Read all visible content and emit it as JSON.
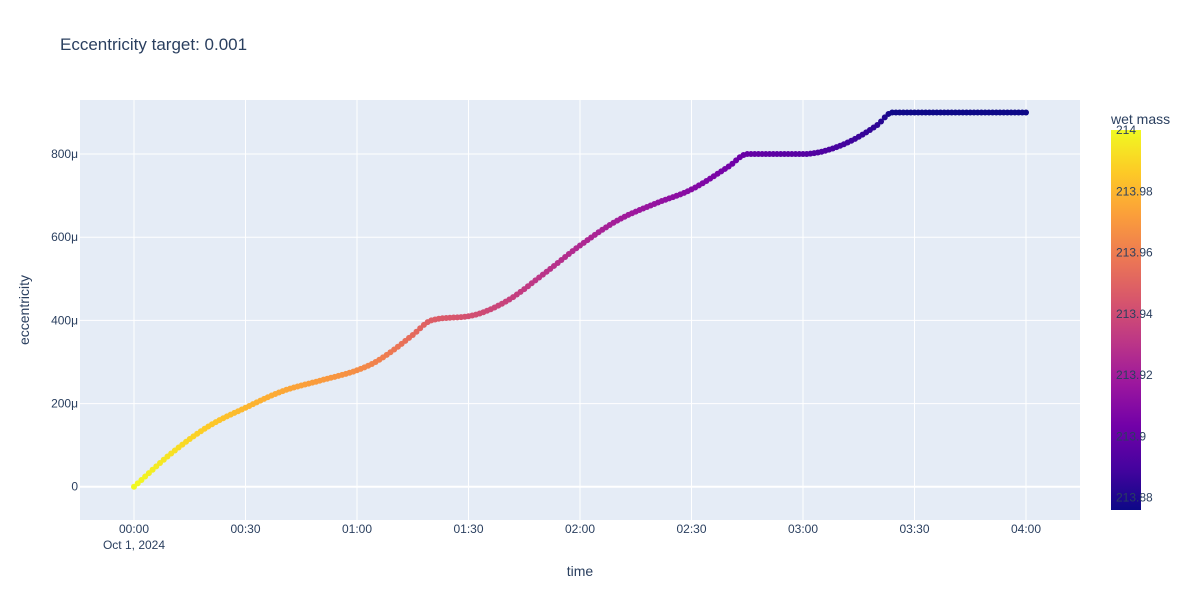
{
  "chart_data": {
    "type": "scatter",
    "title": "Eccentricity target: 0.001",
    "xlabel": "time",
    "ylabel": "eccentricity",
    "x_start": "2024-10-01T00:00",
    "x_end": "2024-10-01T04:00",
    "x_date_label": "Oct 1, 2024",
    "x_tick_labels": [
      "00:00",
      "00:30",
      "01:00",
      "01:30",
      "02:00",
      "02:30",
      "03:00",
      "03:30",
      "04:00"
    ],
    "y_tick_values": [
      0,
      0.0002,
      0.0004,
      0.0006,
      0.0008
    ],
    "y_tick_labels": [
      "0",
      "200μ",
      "400μ",
      "600μ",
      "800μ"
    ],
    "ylim": [
      -8e-05,
      0.00093
    ],
    "grid": true,
    "colorbar": {
      "title": "wet mass",
      "range": [
        213.876,
        214.0
      ],
      "tick_values": [
        214,
        213.98,
        213.96,
        213.94,
        213.92,
        213.9,
        213.88
      ],
      "tick_labels": [
        "214",
        "213.98",
        "213.96",
        "213.94",
        "213.92",
        "213.9",
        "213.88"
      ],
      "colorscale": [
        "#0d0887",
        "#46039f",
        "#7201a8",
        "#9c179e",
        "#bd3786",
        "#d8576b",
        "#ed7953",
        "#fb9f3a",
        "#fdca26",
        "#f0f921"
      ]
    },
    "series": [
      {
        "x": [
          "00:00",
          "00:10",
          "00:20",
          "00:30",
          "00:40",
          "00:50",
          "01:00",
          "01:05",
          "01:10",
          "01:15",
          "01:20",
          "01:30",
          "01:40",
          "01:50",
          "02:00",
          "02:10",
          "02:20",
          "02:30",
          "02:40",
          "02:45",
          "02:50",
          "03:00",
          "03:10",
          "03:20",
          "03:24",
          "03:30",
          "03:40",
          "03:50",
          "04:00"
        ],
        "y": [
          0,
          8e-05,
          0.000145,
          0.00019,
          0.00023,
          0.000255,
          0.00028,
          0.0003,
          0.00033,
          0.000365,
          0.0004,
          0.00041,
          0.000445,
          0.00051,
          0.00058,
          0.00064,
          0.00068,
          0.000715,
          0.00077,
          0.0008,
          0.0008,
          0.0008,
          0.00082,
          0.00087,
          0.0009,
          0.0009,
          0.0009,
          0.0009,
          0.0009
        ],
        "wet_mass": [
          214.0,
          213.993,
          213.986,
          213.98,
          213.975,
          213.971,
          213.966,
          213.962,
          213.958,
          213.953,
          213.948,
          213.942,
          213.936,
          213.93,
          213.925,
          213.92,
          213.915,
          213.91,
          213.904,
          213.9,
          213.898,
          213.895,
          213.89,
          213.884,
          213.877,
          213.876,
          213.876,
          213.876,
          213.876
        ]
      }
    ]
  }
}
